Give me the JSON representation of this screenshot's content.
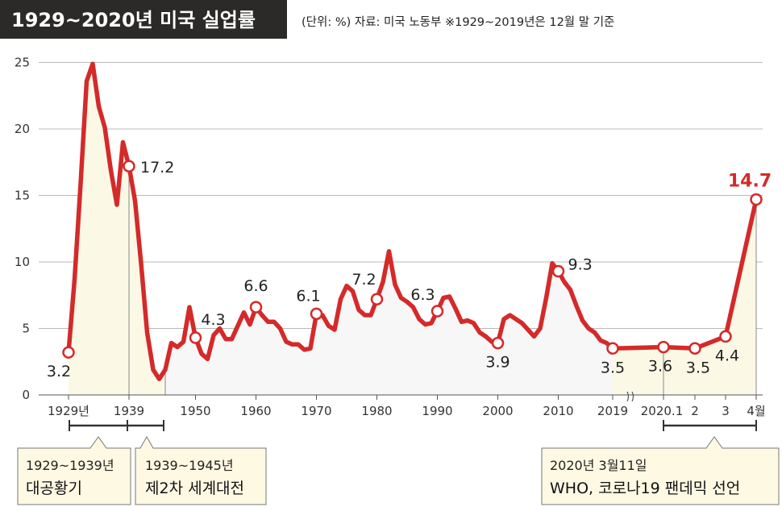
{
  "header": {
    "title": "1929~2020년 미국 실업률",
    "subtitle": "(단위: %) 자료: 미국 노동부 ※1929~2019년은 12월 말 기준"
  },
  "colors": {
    "line": "#d42a2a",
    "fill": "#fbf8e6",
    "header_bg": "#2b2a29",
    "grid": "#b8b8b8",
    "note_bg": "#fdf9e3"
  },
  "notes": {
    "depression": {
      "line1": "1929~1939년",
      "line2": "대공황기"
    },
    "ww2": {
      "line1": "1939~1945년",
      "line2": "제2차 세계대전"
    },
    "covid": {
      "line1": "2020년 3월11일",
      "line2": "WHO, 코로나19 팬데믹 선언"
    }
  },
  "chart_data": {
    "type": "line",
    "title": "1929~2020년 미국 실업률",
    "ylim": [
      0,
      25
    ],
    "yticks": [
      "0",
      "5",
      "10",
      "15",
      "20",
      "25"
    ],
    "xtick_labels": [
      "1929년",
      "1939",
      "1950",
      "1960",
      "1970",
      "1980",
      "1990",
      "2000",
      "2010",
      "2019",
      "2020.1",
      "2",
      "3",
      "4월"
    ],
    "annual": {
      "x": [
        1929,
        1930,
        1931,
        1932,
        1933,
        1934,
        1935,
        1936,
        1937,
        1938,
        1939,
        1940,
        1941,
        1942,
        1943,
        1944,
        1945,
        1946,
        1947,
        1948,
        1949,
        1950,
        1951,
        1952,
        1953,
        1954,
        1955,
        1956,
        1957,
        1958,
        1959,
        1960,
        1961,
        1962,
        1963,
        1964,
        1965,
        1966,
        1967,
        1968,
        1969,
        1970,
        1971,
        1972,
        1973,
        1974,
        1975,
        1976,
        1977,
        1978,
        1979,
        1980,
        1981,
        1982,
        1983,
        1984,
        1985,
        1986,
        1987,
        1988,
        1989,
        1990,
        1991,
        1992,
        1993,
        1994,
        1995,
        1996,
        1997,
        1998,
        1999,
        2000,
        2001,
        2002,
        2003,
        2004,
        2005,
        2006,
        2007,
        2008,
        2009,
        2010,
        2011,
        2012,
        2013,
        2014,
        2015,
        2016,
        2017,
        2018,
        2019
      ],
      "y": [
        3.2,
        8.7,
        15.9,
        23.6,
        24.9,
        21.7,
        20.1,
        16.9,
        14.3,
        19.0,
        17.2,
        14.6,
        9.9,
        4.7,
        1.9,
        1.2,
        1.9,
        3.9,
        3.6,
        4.0,
        6.6,
        4.3,
        3.1,
        2.7,
        4.5,
        5.0,
        4.2,
        4.2,
        5.2,
        6.2,
        5.3,
        6.6,
        6.0,
        5.5,
        5.5,
        5.0,
        4.0,
        3.8,
        3.8,
        3.4,
        3.5,
        6.1,
        6.0,
        5.2,
        4.9,
        7.2,
        8.2,
        7.8,
        6.4,
        6.0,
        6.0,
        7.2,
        8.5,
        10.8,
        8.3,
        7.3,
        7.0,
        6.6,
        5.7,
        5.3,
        5.4,
        6.3,
        7.3,
        7.4,
        6.5,
        5.5,
        5.6,
        5.4,
        4.7,
        4.4,
        4.0,
        3.9,
        5.7,
        6.0,
        5.7,
        5.4,
        4.9,
        4.4,
        5.0,
        7.3,
        9.9,
        9.3,
        8.5,
        7.9,
        6.7,
        5.6,
        5.0,
        4.7,
        4.1,
        3.9,
        3.5
      ]
    },
    "monthly_2020": {
      "x": [
        "2020.1",
        "2",
        "3",
        "4월"
      ],
      "y": [
        3.6,
        3.5,
        4.4,
        14.7
      ]
    },
    "labeled_points": [
      {
        "year": 1929,
        "value": 3.2,
        "label": "3.2"
      },
      {
        "year": 1939,
        "value": 17.2,
        "label": "17.2"
      },
      {
        "year": 1950,
        "value": 4.3,
        "label": "4.3"
      },
      {
        "year": 1960,
        "value": 6.6,
        "label": "6.6"
      },
      {
        "year": 1970,
        "value": 6.1,
        "label": "6.1"
      },
      {
        "year": 1980,
        "value": 7.2,
        "label": "7.2"
      },
      {
        "year": 1990,
        "value": 6.3,
        "label": "6.3"
      },
      {
        "year": 2000,
        "value": 3.9,
        "label": "3.9"
      },
      {
        "year": 2010,
        "value": 9.3,
        "label": "9.3"
      },
      {
        "year": 2019,
        "value": 3.5,
        "label": "3.5"
      },
      {
        "month": "2020.1",
        "value": 3.6,
        "label": "3.6"
      },
      {
        "month": "2",
        "value": 3.5,
        "label": "3.5"
      },
      {
        "month": "3",
        "value": 4.4,
        "label": "4.4"
      },
      {
        "month": "4월",
        "value": 14.7,
        "label": "14.7"
      }
    ]
  }
}
